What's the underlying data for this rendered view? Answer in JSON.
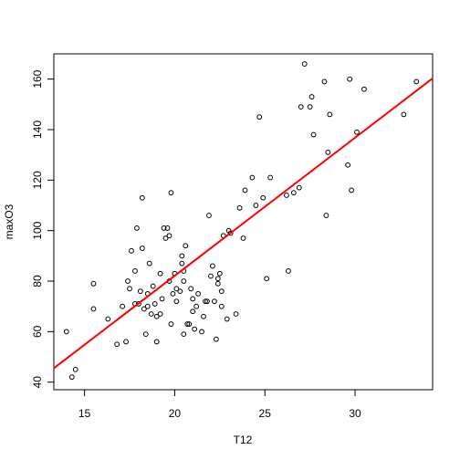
{
  "chart_data": {
    "type": "scatter",
    "title": "",
    "xlabel": "T12",
    "ylabel": "maxO3",
    "xlim": [
      13.3,
      34.3
    ],
    "ylim": [
      37.0,
      170.0
    ],
    "xticks": [
      15,
      20,
      25,
      30
    ],
    "yticks": [
      40,
      60,
      80,
      100,
      120,
      140,
      160
    ],
    "grid": false,
    "legend": "none",
    "point_color": "#000000",
    "fit_color": "#ff0000",
    "series": [
      {
        "points": [
          [
            14.0,
            60
          ],
          [
            14.3,
            42
          ],
          [
            14.5,
            45
          ],
          [
            15.5,
            79
          ],
          [
            15.5,
            69
          ],
          [
            16.3,
            65
          ],
          [
            16.8,
            55
          ],
          [
            17.1,
            70
          ],
          [
            17.3,
            56
          ],
          [
            17.4,
            80
          ],
          [
            17.5,
            77
          ],
          [
            17.6,
            92
          ],
          [
            17.8,
            84
          ],
          [
            17.9,
            101
          ],
          [
            17.8,
            71
          ],
          [
            18.0,
            71
          ],
          [
            18.1,
            76
          ],
          [
            18.2,
            93
          ],
          [
            18.2,
            113
          ],
          [
            18.3,
            69
          ],
          [
            18.4,
            59
          ],
          [
            18.5,
            70
          ],
          [
            18.5,
            75
          ],
          [
            18.6,
            87
          ],
          [
            18.7,
            67
          ],
          [
            18.8,
            78
          ],
          [
            18.9,
            71
          ],
          [
            19.0,
            66
          ],
          [
            19.0,
            56
          ],
          [
            19.2,
            67
          ],
          [
            19.2,
            83
          ],
          [
            19.3,
            73
          ],
          [
            19.4,
            101
          ],
          [
            19.5,
            97
          ],
          [
            19.6,
            101
          ],
          [
            19.7,
            98
          ],
          [
            19.7,
            80
          ],
          [
            19.8,
            115
          ],
          [
            19.8,
            63
          ],
          [
            19.9,
            75
          ],
          [
            20.0,
            83
          ],
          [
            20.1,
            72
          ],
          [
            20.1,
            77
          ],
          [
            20.3,
            76
          ],
          [
            20.4,
            90
          ],
          [
            20.4,
            87
          ],
          [
            20.5,
            84
          ],
          [
            20.5,
            59
          ],
          [
            20.5,
            80
          ],
          [
            20.6,
            94
          ],
          [
            20.7,
            63
          ],
          [
            20.8,
            63
          ],
          [
            20.9,
            77
          ],
          [
            21.0,
            68
          ],
          [
            21.0,
            73
          ],
          [
            21.1,
            61
          ],
          [
            21.2,
            70
          ],
          [
            21.3,
            75
          ],
          [
            21.5,
            60
          ],
          [
            21.6,
            66
          ],
          [
            21.7,
            72
          ],
          [
            21.8,
            72
          ],
          [
            21.9,
            106
          ],
          [
            22.0,
            82
          ],
          [
            22.1,
            86
          ],
          [
            22.2,
            72
          ],
          [
            22.3,
            57
          ],
          [
            22.4,
            79
          ],
          [
            22.4,
            81
          ],
          [
            22.5,
            83
          ],
          [
            22.6,
            76
          ],
          [
            22.6,
            70
          ],
          [
            22.7,
            98
          ],
          [
            22.9,
            65
          ],
          [
            23.0,
            100
          ],
          [
            23.1,
            99
          ],
          [
            23.4,
            67
          ],
          [
            23.6,
            109
          ],
          [
            23.8,
            97
          ],
          [
            23.9,
            116
          ],
          [
            24.3,
            121
          ],
          [
            24.5,
            110
          ],
          [
            24.7,
            145
          ],
          [
            24.9,
            113
          ],
          [
            25.1,
            81
          ],
          [
            25.3,
            121
          ],
          [
            26.2,
            114
          ],
          [
            26.3,
            84
          ],
          [
            26.6,
            115
          ],
          [
            26.9,
            117
          ],
          [
            27.0,
            149
          ],
          [
            27.2,
            166
          ],
          [
            27.5,
            149
          ],
          [
            27.6,
            153
          ],
          [
            27.7,
            138
          ],
          [
            28.3,
            159
          ],
          [
            28.5,
            131
          ],
          [
            28.4,
            106
          ],
          [
            28.6,
            146
          ],
          [
            29.6,
            126
          ],
          [
            29.7,
            160
          ],
          [
            29.8,
            116
          ],
          [
            30.1,
            139
          ],
          [
            30.5,
            156
          ],
          [
            32.7,
            146
          ],
          [
            33.4,
            159
          ]
        ]
      }
    ],
    "fit_line": {
      "x": [
        13.3,
        34.3
      ],
      "y": [
        45.5,
        160.3
      ]
    }
  }
}
